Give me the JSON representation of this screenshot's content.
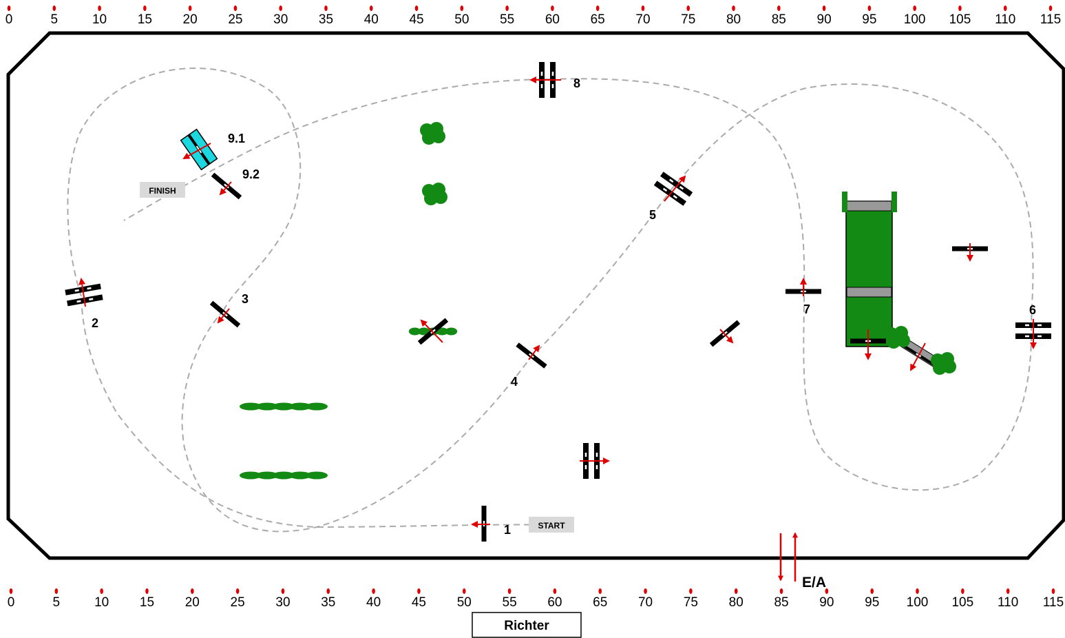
{
  "ruler": {
    "ticks": [
      "0",
      "5",
      "10",
      "15",
      "20",
      "25",
      "30",
      "35",
      "40",
      "45",
      "50",
      "55",
      "60",
      "65",
      "70",
      "75",
      "80",
      "85",
      "90",
      "95",
      "100",
      "105",
      "110",
      "115"
    ]
  },
  "obstacles": {
    "o1": "1",
    "o2": "2",
    "o3": "3",
    "o4": "4",
    "o5": "5",
    "o6": "6",
    "o7": "7",
    "o8": "8",
    "o91": "9.1",
    "o92": "9.2"
  },
  "markers": {
    "start": "START",
    "finish": "FINISH"
  },
  "entrance": "E/A",
  "judge": "Richter",
  "colors": {
    "tick": "#e00000",
    "arrow": "#e00000",
    "hedge": "#138a13",
    "water": "#1ad7e0",
    "border": "#000000",
    "path": "#aaaaaa",
    "tag_bg": "#d9d9d9"
  }
}
